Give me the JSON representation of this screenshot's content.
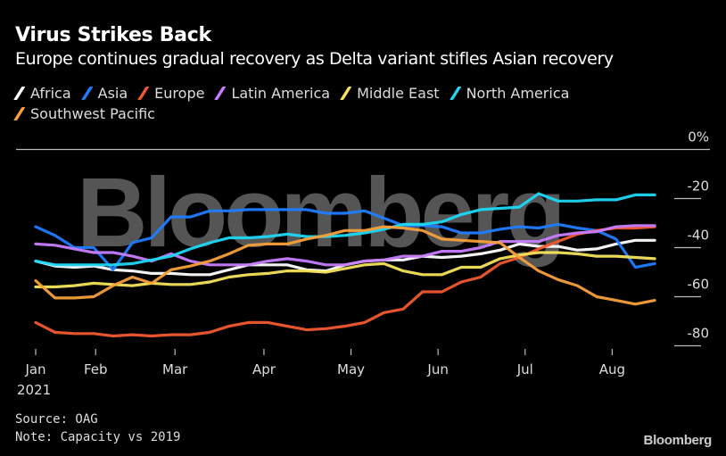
{
  "header": {
    "title": "Virus Strikes Back",
    "subtitle": "Europe continues gradual recovery as Delta variant stifles Asian recovery"
  },
  "footer": {
    "source": "Source: OAG",
    "note": "Note: Capacity vs 2019",
    "brand": "Bloomberg"
  },
  "watermark": "Bloomberg",
  "chart_data": {
    "type": "line",
    "title": "Virus Strikes Back",
    "subtitle": "Europe continues gradual recovery as Delta variant stifles Asian recovery",
    "xlabel": "",
    "ylabel": "",
    "y_unit_label": "0%",
    "ylim": [
      -85,
      0
    ],
    "yticks": [
      0,
      -20,
      -40,
      -60,
      -80
    ],
    "ytick_labels": [
      "0%",
      "-20",
      "-40",
      "-60",
      "-80"
    ],
    "x_frequency": "weekly",
    "x_start": "2021-01-01",
    "num_points": 33,
    "xtick_labels": [
      "Jan",
      "Feb",
      "Mar",
      "Apr",
      "May",
      "Jun",
      "Jul",
      "Aug"
    ],
    "xtick_year": "2021",
    "xtick_week_index": [
      0,
      3.1,
      7.2,
      11.8,
      16.3,
      20.8,
      25.3,
      29.8
    ],
    "grid": true,
    "legend_position": "top-left",
    "series": [
      {
        "name": "Africa",
        "color": "#ffffff",
        "values": [
          -45.5,
          -47.5,
          -48,
          -47.5,
          -49,
          -49.5,
          -50.5,
          -50.5,
          -51,
          -51,
          -49,
          -47,
          -47,
          -47,
          -49,
          -49.5,
          -47,
          -45.5,
          -45,
          -45,
          -43.5,
          -44,
          -43.5,
          -42.5,
          -41,
          -38.5,
          -39.5,
          -39.5,
          -41,
          -40.5,
          -38.5,
          -37,
          -37
        ]
      },
      {
        "name": "Asia",
        "color": "#1f7cff",
        "values": [
          -31.5,
          -35,
          -40,
          -40,
          -49,
          -38,
          -36,
          -27.5,
          -27.5,
          -25,
          -25,
          -24.5,
          -24.5,
          -24.5,
          -24.5,
          -26,
          -26,
          -25,
          -28,
          -31,
          -31,
          -31.5,
          -34,
          -34,
          -32.5,
          -31.5,
          -32,
          -30.5,
          -32,
          -33,
          -36.5,
          -48,
          -46.5
        ]
      },
      {
        "name": "Europe",
        "color": "#f2582e",
        "values": [
          -70.5,
          -74.5,
          -75,
          -75,
          -76,
          -75.5,
          -76,
          -75.5,
          -75.5,
          -74.5,
          -72,
          -70.5,
          -70.5,
          -72,
          -73.5,
          -73,
          -72,
          -70.5,
          -66.5,
          -65,
          -58,
          -58,
          -54,
          -52,
          -46.5,
          -44,
          -40.5,
          -37.5,
          -34.5,
          -33,
          -32,
          -32,
          -31.5
        ]
      },
      {
        "name": "Latin America",
        "color": "#c77dff",
        "values": [
          -38.5,
          -39,
          -40.5,
          -42,
          -42,
          -43.5,
          -45.5,
          -42.5,
          -45.5,
          -47,
          -47,
          -47,
          -45.5,
          -44.5,
          -45.5,
          -47,
          -47,
          -45.5,
          -45,
          -43.5,
          -43.5,
          -41.5,
          -41.5,
          -40,
          -37.5,
          -37.5,
          -37.5,
          -35,
          -34,
          -33.5,
          -31.5,
          -31,
          -31
        ]
      },
      {
        "name": "Middle East",
        "color": "#f5e45a",
        "values": [
          -56,
          -56,
          -55.5,
          -54.5,
          -55,
          -55.5,
          -54.5,
          -55,
          -55,
          -54,
          -52,
          -51,
          -50.5,
          -49.5,
          -49.5,
          -50,
          -48.5,
          -47,
          -46.5,
          -49.5,
          -51,
          -51,
          -48,
          -48,
          -44.5,
          -43,
          -42,
          -42,
          -42.5,
          -43.5,
          -43.5,
          -44,
          -44.5
        ]
      },
      {
        "name": "North America",
        "color": "#1ed8f5",
        "values": [
          -45.5,
          -47,
          -47,
          -47,
          -47,
          -46.5,
          -45,
          -43.5,
          -40.5,
          -38,
          -36,
          -36,
          -35.5,
          -34.5,
          -35.5,
          -35.5,
          -35,
          -34,
          -32.5,
          -30.5,
          -30.5,
          -29.5,
          -26.5,
          -24.5,
          -24,
          -23.5,
          -18,
          -21,
          -21,
          -20.5,
          -20.5,
          -18.5,
          -18.5
        ]
      },
      {
        "name": "Southwest Pacific",
        "color": "#f7a03a",
        "values": [
          -53.5,
          -60.5,
          -60.5,
          -60,
          -55.5,
          -52,
          -54.5,
          -49,
          -47.5,
          -45.5,
          -42.5,
          -39,
          -38.5,
          -38.5,
          -36.5,
          -35,
          -33,
          -33,
          -31.5,
          -32,
          -33,
          -36.5,
          -37,
          -37.5,
          -38,
          -44,
          -49.5,
          -53,
          -55.5,
          -60,
          -61.5,
          -63,
          -61.5
        ]
      }
    ]
  }
}
